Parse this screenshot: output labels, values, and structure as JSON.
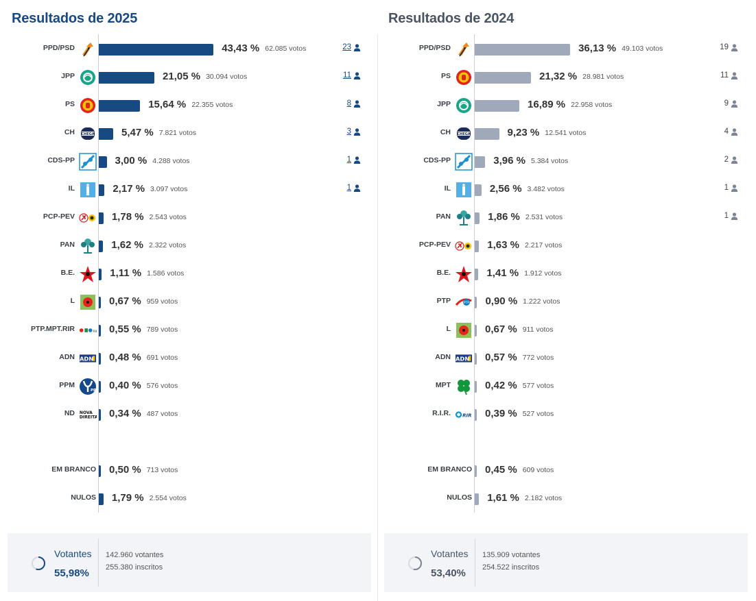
{
  "chart_data": [
    {
      "type": "bar",
      "title": "Resultados de 2025",
      "accent": "#174a82",
      "rows": [
        {
          "party": "PPD/PSD",
          "pct": 43.43,
          "pct_label": "43,43 %",
          "votes": "62.085 votos",
          "seats": "23",
          "logo": "psd-arrow-icon"
        },
        {
          "party": "JPP",
          "pct": 21.05,
          "pct_label": "21,05 %",
          "votes": "30.094 votos",
          "seats": "11",
          "logo": "jpp-icon"
        },
        {
          "party": "PS",
          "pct": 15.64,
          "pct_label": "15,64 %",
          "votes": "22.355 votos",
          "seats": "8",
          "logo": "ps-fist-icon"
        },
        {
          "party": "CH",
          "pct": 5.47,
          "pct_label": "5,47 %",
          "votes": "7.821 votos",
          "seats": "3",
          "logo": "chega-icon"
        },
        {
          "party": "CDS-PP",
          "pct": 3.0,
          "pct_label": "3,00 %",
          "votes": "4.288 votos",
          "seats": "1",
          "logo": "cds-pp-icon"
        },
        {
          "party": "IL",
          "pct": 2.17,
          "pct_label": "2,17 %",
          "votes": "3.097 votos",
          "seats": "1",
          "logo": "il-icon"
        },
        {
          "party": "PCP-PEV",
          "pct": 1.78,
          "pct_label": "1,78 %",
          "votes": "2.543 votos",
          "seats": "",
          "logo": "pcp-pev-icon"
        },
        {
          "party": "PAN",
          "pct": 1.62,
          "pct_label": "1,62 %",
          "votes": "2.322 votos",
          "seats": "",
          "logo": "pan-tree-icon"
        },
        {
          "party": "B.E.",
          "pct": 1.11,
          "pct_label": "1,11 %",
          "votes": "1.586 votos",
          "seats": "",
          "logo": "be-star-icon"
        },
        {
          "party": "L",
          "pct": 0.67,
          "pct_label": "0,67 %",
          "votes": "959 votos",
          "seats": "",
          "logo": "livre-poppy-icon"
        },
        {
          "party": "PTP.MPT.RIR",
          "pct": 0.55,
          "pct_label": "0,55 %",
          "votes": "789 votos",
          "seats": "",
          "logo": "ptp-mpt-rir-icon"
        },
        {
          "party": "ADN",
          "pct": 0.48,
          "pct_label": "0,48 %",
          "votes": "691 votos",
          "seats": "",
          "logo": "adn-icon"
        },
        {
          "party": "PPM",
          "pct": 0.4,
          "pct_label": "0,40 %",
          "votes": "576 votos",
          "seats": "",
          "logo": "ppm-icon"
        },
        {
          "party": "ND",
          "pct": 0.34,
          "pct_label": "0,34 %",
          "votes": "487 votos",
          "seats": "",
          "logo": "nova-direita-icon"
        }
      ],
      "extra_rows": [
        {
          "party": "EM BRANCO",
          "pct": 0.5,
          "pct_label": "0,50 %",
          "votes": "713 votos"
        },
        {
          "party": "NULOS",
          "pct": 1.79,
          "pct_label": "1,79 %",
          "votes": "2.554 votos"
        }
      ],
      "summary": {
        "label": "Votantes",
        "turnout": "55,98%",
        "turnout_value": 55.98,
        "voters": "142.960 votantes",
        "registered": "255.380 inscritos"
      }
    },
    {
      "type": "bar",
      "title": "Resultados de 2024",
      "accent": "#9fa9b9",
      "rows": [
        {
          "party": "PPD/PSD",
          "pct": 36.13,
          "pct_label": "36,13 %",
          "votes": "49.103 votos",
          "seats": "19",
          "logo": "psd-arrow-icon"
        },
        {
          "party": "PS",
          "pct": 21.32,
          "pct_label": "21,32 %",
          "votes": "28.981 votos",
          "seats": "11",
          "logo": "ps-fist-icon"
        },
        {
          "party": "JPP",
          "pct": 16.89,
          "pct_label": "16,89 %",
          "votes": "22.958 votos",
          "seats": "9",
          "logo": "jpp-icon"
        },
        {
          "party": "CH",
          "pct": 9.23,
          "pct_label": "9,23 %",
          "votes": "12.541 votos",
          "seats": "4",
          "logo": "chega-icon"
        },
        {
          "party": "CDS-PP",
          "pct": 3.96,
          "pct_label": "3,96 %",
          "votes": "5.384 votos",
          "seats": "2",
          "logo": "cds-pp-icon"
        },
        {
          "party": "IL",
          "pct": 2.56,
          "pct_label": "2,56 %",
          "votes": "3.482 votos",
          "seats": "1",
          "logo": "il-icon"
        },
        {
          "party": "PAN",
          "pct": 1.86,
          "pct_label": "1,86 %",
          "votes": "2.531 votos",
          "seats": "1",
          "logo": "pan-tree-icon"
        },
        {
          "party": "PCP-PEV",
          "pct": 1.63,
          "pct_label": "1,63 %",
          "votes": "2.217 votos",
          "seats": "",
          "logo": "pcp-pev-icon"
        },
        {
          "party": "B.E.",
          "pct": 1.41,
          "pct_label": "1,41 %",
          "votes": "1.912 votos",
          "seats": "",
          "logo": "be-star-icon"
        },
        {
          "party": "PTP",
          "pct": 0.9,
          "pct_label": "0,90 %",
          "votes": "1.222 votos",
          "seats": "",
          "logo": "ptp-icon"
        },
        {
          "party": "L",
          "pct": 0.67,
          "pct_label": "0,67 %",
          "votes": "911 votos",
          "seats": "",
          "logo": "livre-poppy-icon"
        },
        {
          "party": "ADN",
          "pct": 0.57,
          "pct_label": "0,57 %",
          "votes": "772 votos",
          "seats": "",
          "logo": "adn-icon"
        },
        {
          "party": "MPT",
          "pct": 0.42,
          "pct_label": "0,42 %",
          "votes": "577 votos",
          "seats": "",
          "logo": "mpt-clover-icon"
        },
        {
          "party": "R.I.R.",
          "pct": 0.39,
          "pct_label": "0,39 %",
          "votes": "527 votos",
          "seats": "",
          "logo": "rir-icon"
        }
      ],
      "extra_rows": [
        {
          "party": "EM BRANCO",
          "pct": 0.45,
          "pct_label": "0,45 %",
          "votes": "609 votos"
        },
        {
          "party": "NULOS",
          "pct": 1.61,
          "pct_label": "1,61 %",
          "votes": "2.182 votos"
        }
      ],
      "summary": {
        "label": "Votantes",
        "turnout": "53,40%",
        "turnout_value": 53.4,
        "voters": "135.909 votantes",
        "registered": "254.522 inscritos"
      }
    }
  ]
}
